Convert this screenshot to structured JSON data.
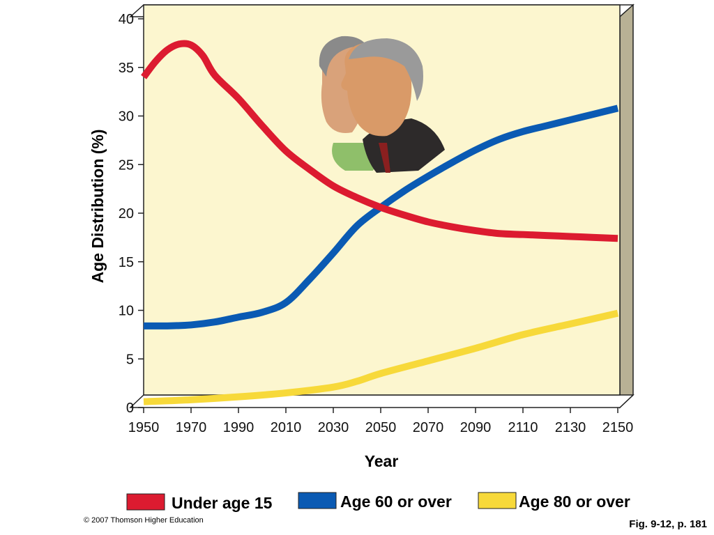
{
  "chart_data": {
    "type": "line",
    "xlabel": "Year",
    "ylabel": "Age Distribution (%)",
    "xlim": [
      1950,
      2150
    ],
    "ylim": [
      0,
      40
    ],
    "x_ticks": [
      "1950",
      "1970",
      "1990",
      "2010",
      "2030",
      "2050",
      "2070",
      "2090",
      "2110",
      "2130",
      "2150"
    ],
    "y_ticks": [
      "0",
      "5",
      "10",
      "15",
      "20",
      "25",
      "30",
      "35",
      "40"
    ],
    "grid": false,
    "legend_position": "bottom",
    "background_color": "#fcf6cf",
    "series": [
      {
        "name": "Under age 15",
        "color": "#dc1b30",
        "x": [
          1950,
          1955,
          1960,
          1965,
          1970,
          1975,
          1980,
          1990,
          2000,
          2010,
          2020,
          2030,
          2040,
          2050,
          2060,
          2070,
          2080,
          2090,
          2100,
          2110,
          2120,
          2130,
          2140,
          2150
        ],
        "y": [
          34.0,
          35.6,
          36.8,
          37.4,
          37.3,
          36.2,
          34.2,
          31.8,
          29.0,
          26.4,
          24.5,
          22.8,
          21.6,
          20.6,
          19.8,
          19.1,
          18.6,
          18.2,
          17.9,
          17.8,
          17.7,
          17.6,
          17.5,
          17.4
        ]
      },
      {
        "name": "Age 60 or over",
        "color": "#0a5ab3",
        "x": [
          1950,
          1960,
          1970,
          1980,
          1990,
          2000,
          2010,
          2020,
          2030,
          2040,
          2050,
          2060,
          2070,
          2080,
          2090,
          2100,
          2110,
          2120,
          2130,
          2140,
          2150
        ],
        "y": [
          8.4,
          8.4,
          8.5,
          8.8,
          9.3,
          9.8,
          10.8,
          13.2,
          15.9,
          18.7,
          20.6,
          22.3,
          23.8,
          25.2,
          26.5,
          27.6,
          28.4,
          29.0,
          29.6,
          30.2,
          30.8
        ]
      },
      {
        "name": "Age 80 or over",
        "color": "#f7d93a",
        "x": [
          1950,
          1970,
          1990,
          2010,
          2030,
          2040,
          2050,
          2070,
          2090,
          2110,
          2130,
          2150
        ],
        "y": [
          0.6,
          0.8,
          1.1,
          1.5,
          2.1,
          2.7,
          3.5,
          4.8,
          6.1,
          7.5,
          8.6,
          9.7
        ]
      }
    ]
  },
  "footer": {
    "copyright": "© 2007 Thomson Higher Education",
    "figure_ref": "Fig. 9-12, p. 181"
  }
}
